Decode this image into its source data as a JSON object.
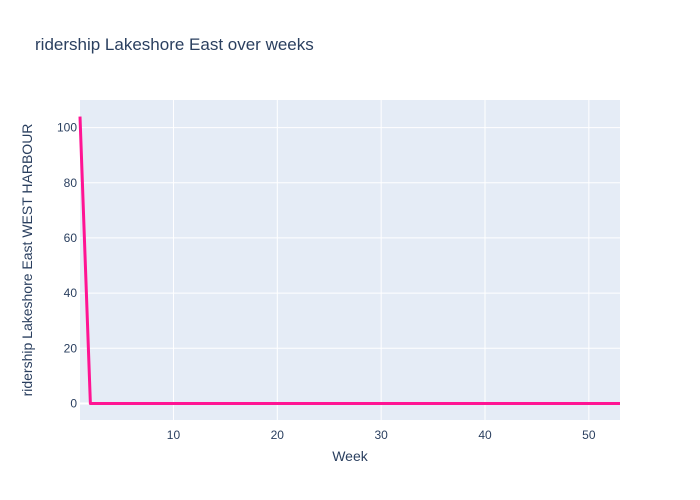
{
  "chart_data": {
    "type": "line",
    "title": "ridership Lakeshore East over weeks",
    "xlabel": "Week",
    "ylabel": "ridership Lakeshore East WEST HARBOUR",
    "xlim": [
      1,
      53
    ],
    "ylim": [
      -6,
      110
    ],
    "xticks": [
      10,
      20,
      30,
      40,
      50
    ],
    "yticks": [
      0,
      20,
      40,
      60,
      80,
      100
    ],
    "grid": true,
    "colors": {
      "line": "#ff1493",
      "plot_bg": "#e5ecf6",
      "grid": "#ffffff",
      "text": "#2a3f5f"
    },
    "series": [
      {
        "x": [
          1,
          2,
          3,
          4,
          5,
          6,
          7,
          8,
          9,
          10,
          11,
          12,
          13,
          14,
          15,
          16,
          17,
          18,
          19,
          20,
          21,
          22,
          23,
          24,
          25,
          26,
          27,
          28,
          29,
          30,
          31,
          32,
          33,
          34,
          35,
          36,
          37,
          38,
          39,
          40,
          41,
          42,
          43,
          44,
          45,
          46,
          47,
          48,
          49,
          50,
          51,
          52,
          53
        ],
        "values": [
          104,
          0,
          0,
          0,
          0,
          0,
          0,
          0,
          0,
          0,
          0,
          0,
          0,
          0,
          0,
          0,
          0,
          0,
          0,
          0,
          0,
          0,
          0,
          0,
          0,
          0,
          0,
          0,
          0,
          0,
          0,
          0,
          0,
          0,
          0,
          0,
          0,
          0,
          0,
          0,
          0,
          0,
          0,
          0,
          0,
          0,
          0,
          0,
          0,
          0,
          0,
          0,
          0
        ]
      }
    ]
  }
}
